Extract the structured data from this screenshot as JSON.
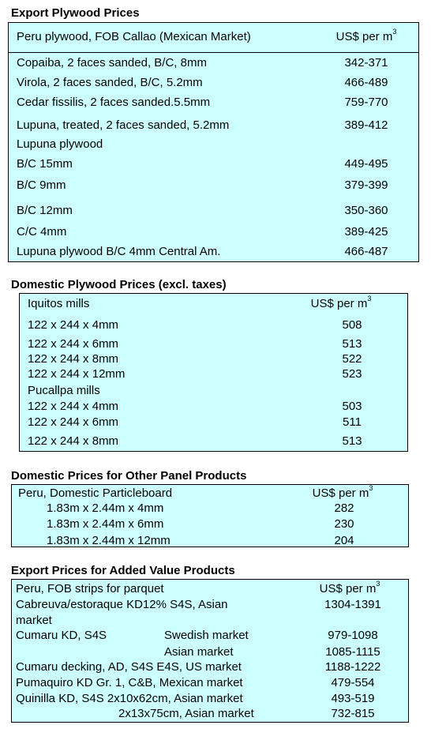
{
  "sections": [
    {
      "title": "Export Plywood Prices",
      "header": {
        "label": "Peru plywood, FOB Callao (Mexican Market)",
        "unit": "US$ per m",
        "unit_sup": "3"
      },
      "rows": [
        {
          "label": "Copaiba, 2 faces sanded, B/C, 8mm",
          "value": "342-371"
        },
        {
          "label": "Virola, 2 faces sanded, B/C, 5.2mm",
          "value": "466-489"
        },
        {
          "label": "Cedar fissilis, 2 faces sanded.5.5mm",
          "value": "759-770"
        },
        {
          "label": "Lupuna, treated, 2 faces sanded, 5.2mm",
          "value": "389-412"
        },
        {
          "label": "Lupuna plywood",
          "value": ""
        },
        {
          "label": "B/C 15mm",
          "value": "449-495"
        },
        {
          "label": "B/C 9mm",
          "value": "379-399"
        },
        {
          "label": "B/C 12mm",
          "value": "350-360"
        },
        {
          "label": "C/C 4mm",
          "value": "389-425"
        },
        {
          "label": "Lupuna plywood B/C 4mm Central Am.",
          "value": "466-487"
        }
      ]
    },
    {
      "title": "Domestic Plywood Prices (excl. taxes)",
      "header": {
        "label": "Iquitos mills",
        "unit": "US$ per m",
        "unit_sup": "3"
      },
      "rows": [
        {
          "label": "122 x 244 x 4mm",
          "value": "508"
        },
        {
          "label": "122 x 244 x 6mm",
          "value": "513"
        },
        {
          "label": "122 x 244 x 8mm",
          "value": "522"
        },
        {
          "label": "122 x 244 x 12mm",
          "value": "523"
        },
        {
          "label": "Pucallpa mills",
          "value": ""
        },
        {
          "label": "122 x 244 x 4mm",
          "value": "503"
        },
        {
          "label": "122 x 244 x 6mm",
          "value": "511"
        },
        {
          "label": "122 x 244 x 8mm",
          "value": "513"
        }
      ]
    },
    {
      "title": "Domestic Prices for Other Panel Products",
      "header": {
        "label": "Peru, Domestic Particleboard",
        "unit": "US$ per m",
        "unit_sup": "3"
      },
      "rows": [
        {
          "label": "1.83m x 2.44m x 4mm",
          "value": "282"
        },
        {
          "label": "1.83m x 2.44m x 6mm",
          "value": "230"
        },
        {
          "label": "1.83m x 2.44m x 12mm",
          "value": "204"
        }
      ]
    },
    {
      "title": "Export Prices for Added Value Products",
      "header": {
        "label": "Peru, FOB strips for parquet",
        "unit": "US$ per m",
        "unit_sup": "3"
      },
      "rows": [
        {
          "label": "Cabreuva/estoraque KD12% S4S, Asian",
          "value": "1304-1391"
        },
        {
          "label": "market",
          "value": ""
        },
        {
          "label": "Cumaru KD, S4S",
          "market": "Swedish market",
          "value": "979-1098"
        },
        {
          "label": "",
          "market": "Asian market",
          "value": "1085-1115"
        },
        {
          "label": "Cumaru decking, AD, S4S E4S,  US market",
          "value": "1188-1222"
        },
        {
          "label": "Pumaquiro KD Gr. 1, C&B,  Mexican market",
          "value": "479-554"
        },
        {
          "label": "Quinilla KD, S4S 2x10x62cm,  Asian market",
          "value": "493-519"
        },
        {
          "label": "",
          "market": "2x13x75cm, Asian market",
          "value": "732-815"
        }
      ]
    }
  ]
}
